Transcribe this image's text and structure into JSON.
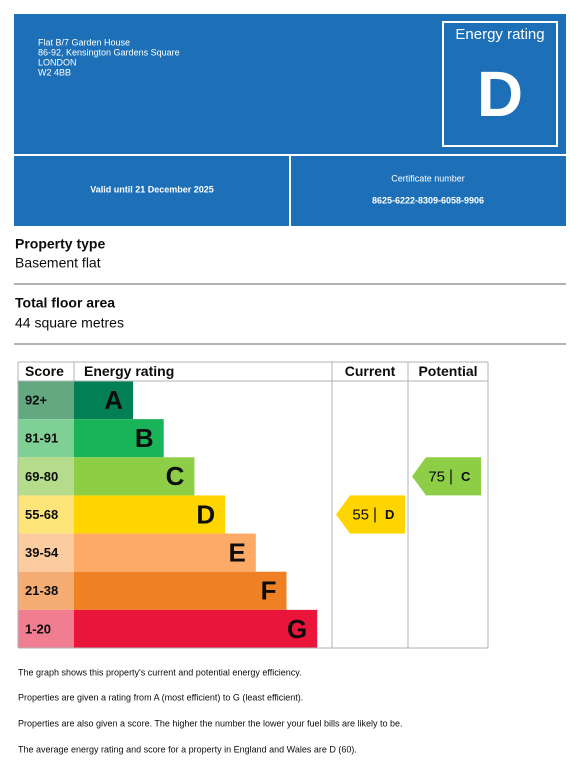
{
  "header": {
    "address": [
      "Flat B/7 Garden House",
      "86-92, Kensington Gardens Square",
      "LONDON",
      "W2 4BB"
    ],
    "rating_label": "Energy rating",
    "rating": "D",
    "valid_until": "Valid until 21 December 2025",
    "certificate_label": "Certificate number",
    "certificate_number": "8625-6222-8309-6058-9906"
  },
  "property": {
    "type_label": "Property type",
    "type": "Basement flat",
    "area_label": "Total floor area",
    "area": "44 square metres"
  },
  "rating_table": {
    "headers": [
      "Score",
      "Energy rating",
      "Current",
      "Potential"
    ],
    "bands": [
      {
        "range": "92+",
        "letter": "A",
        "color": "#008054",
        "score_color": "#64a882"
      },
      {
        "range": "81-91",
        "letter": "B",
        "color": "#19b459",
        "score_color": "#7fd095"
      },
      {
        "range": "69-80",
        "letter": "C",
        "color": "#8dce46",
        "score_color": "#b5dc8a"
      },
      {
        "range": "55-68",
        "letter": "D",
        "color": "#ffd500",
        "score_color": "#fde57a"
      },
      {
        "range": "39-54",
        "letter": "E",
        "color": "#fcaa65",
        "score_color": "#fdcba0"
      },
      {
        "range": "21-38",
        "letter": "F",
        "color": "#ef8023",
        "score_color": "#f5ac72"
      },
      {
        "range": "1-20",
        "letter": "G",
        "color": "#e9153b",
        "score_color": "#f17e90"
      }
    ],
    "current": {
      "score": 55,
      "rating": "D",
      "color": "#ffd500"
    },
    "potential": {
      "score": 75,
      "rating": "C",
      "color": "#8dce46"
    }
  },
  "notes": [
    "The graph shows this property's current and potential energy efficiency.",
    "Properties are given a rating from A (most efficient) to G (least efficient).",
    "Properties are also given a score. The higher the number the lower your fuel bills are likely to be.",
    "The average energy rating and score for a property in England and Wales are D (60)."
  ]
}
